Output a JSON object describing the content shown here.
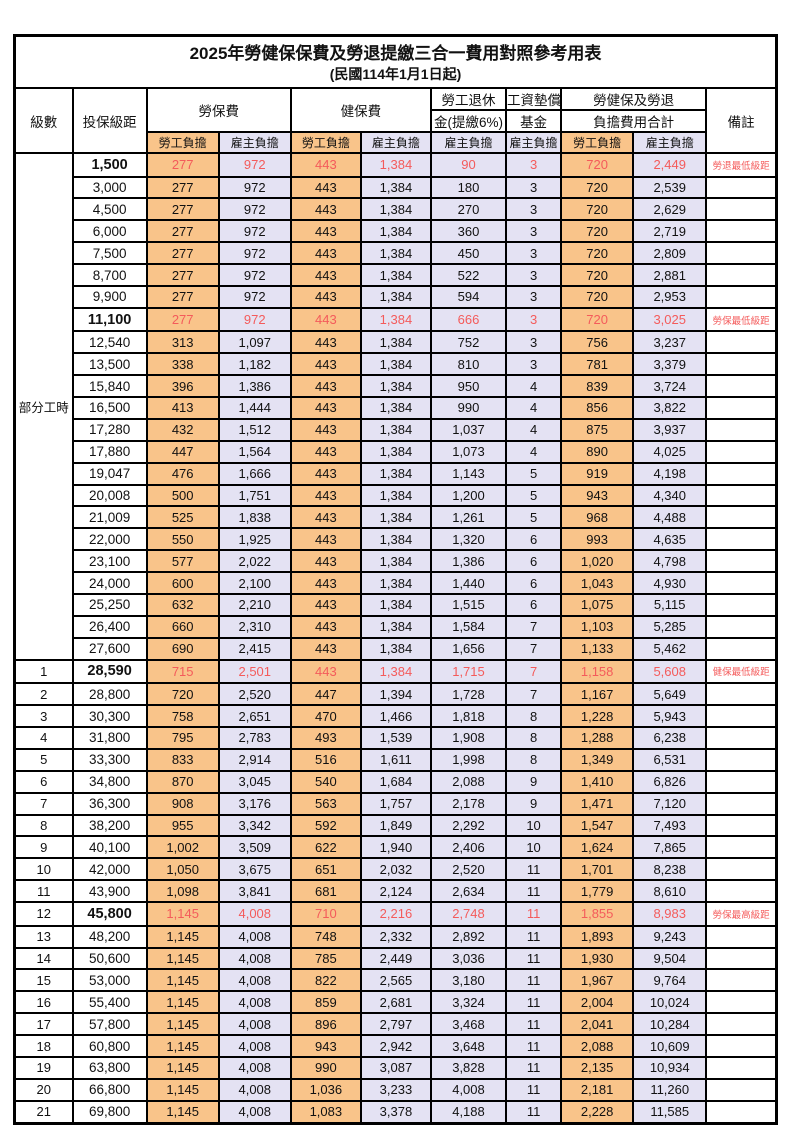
{
  "title": "2025年勞健保保費及勞退提繳三合一費用對照參考用表",
  "subtitle": "(民國114年1月1日起)",
  "columns": {
    "level": "級數",
    "bracket": "投保級距",
    "labor_insurance": "勞保費",
    "health_insurance": "健保費",
    "pension_line1": "勞工退休",
    "pension_line2": "金(提繳6%)",
    "wage_fund_line1": "工資墊償",
    "wage_fund_line2": "基金",
    "total_line1": "勞健保及勞退",
    "total_line2": "負擔費用合計",
    "employee_share": "勞工負擔",
    "employer_share": "雇主負擔",
    "remark": "備註"
  },
  "part_time_label": "部分工時",
  "colors": {
    "employee_bg": "#F9C48A",
    "employer_bg": "#E4E2F3",
    "highlight_red": "#F45B5B"
  },
  "rows": [
    {
      "level": "",
      "bracket": "1,500",
      "v": [
        "277",
        "972",
        "443",
        "1,384",
        "90",
        "3",
        "720",
        "2,449"
      ],
      "remark": "勞退最低級距",
      "hl": true
    },
    {
      "level": "",
      "bracket": "3,000",
      "v": [
        "277",
        "972",
        "443",
        "1,384",
        "180",
        "3",
        "720",
        "2,539"
      ],
      "remark": "",
      "hl": false
    },
    {
      "level": "",
      "bracket": "4,500",
      "v": [
        "277",
        "972",
        "443",
        "1,384",
        "270",
        "3",
        "720",
        "2,629"
      ],
      "remark": "",
      "hl": false
    },
    {
      "level": "",
      "bracket": "6,000",
      "v": [
        "277",
        "972",
        "443",
        "1,384",
        "360",
        "3",
        "720",
        "2,719"
      ],
      "remark": "",
      "hl": false
    },
    {
      "level": "",
      "bracket": "7,500",
      "v": [
        "277",
        "972",
        "443",
        "1,384",
        "450",
        "3",
        "720",
        "2,809"
      ],
      "remark": "",
      "hl": false
    },
    {
      "level": "",
      "bracket": "8,700",
      "v": [
        "277",
        "972",
        "443",
        "1,384",
        "522",
        "3",
        "720",
        "2,881"
      ],
      "remark": "",
      "hl": false
    },
    {
      "level": "",
      "bracket": "9,900",
      "v": [
        "277",
        "972",
        "443",
        "1,384",
        "594",
        "3",
        "720",
        "2,953"
      ],
      "remark": "",
      "hl": false
    },
    {
      "level": "",
      "bracket": "11,100",
      "v": [
        "277",
        "972",
        "443",
        "1,384",
        "666",
        "3",
        "720",
        "3,025"
      ],
      "remark": "勞保最低級距",
      "hl": true
    },
    {
      "level": "",
      "bracket": "12,540",
      "v": [
        "313",
        "1,097",
        "443",
        "1,384",
        "752",
        "3",
        "756",
        "3,237"
      ],
      "remark": "",
      "hl": false
    },
    {
      "level": "",
      "bracket": "13,500",
      "v": [
        "338",
        "1,182",
        "443",
        "1,384",
        "810",
        "3",
        "781",
        "3,379"
      ],
      "remark": "",
      "hl": false
    },
    {
      "level": "",
      "bracket": "15,840",
      "v": [
        "396",
        "1,386",
        "443",
        "1,384",
        "950",
        "4",
        "839",
        "3,724"
      ],
      "remark": "",
      "hl": false
    },
    {
      "level": "",
      "bracket": "16,500",
      "v": [
        "413",
        "1,444",
        "443",
        "1,384",
        "990",
        "4",
        "856",
        "3,822"
      ],
      "remark": "",
      "hl": false
    },
    {
      "level": "",
      "bracket": "17,280",
      "v": [
        "432",
        "1,512",
        "443",
        "1,384",
        "1,037",
        "4",
        "875",
        "3,937"
      ],
      "remark": "",
      "hl": false
    },
    {
      "level": "",
      "bracket": "17,880",
      "v": [
        "447",
        "1,564",
        "443",
        "1,384",
        "1,073",
        "4",
        "890",
        "4,025"
      ],
      "remark": "",
      "hl": false
    },
    {
      "level": "",
      "bracket": "19,047",
      "v": [
        "476",
        "1,666",
        "443",
        "1,384",
        "1,143",
        "5",
        "919",
        "4,198"
      ],
      "remark": "",
      "hl": false
    },
    {
      "level": "",
      "bracket": "20,008",
      "v": [
        "500",
        "1,751",
        "443",
        "1,384",
        "1,200",
        "5",
        "943",
        "4,340"
      ],
      "remark": "",
      "hl": false
    },
    {
      "level": "",
      "bracket": "21,009",
      "v": [
        "525",
        "1,838",
        "443",
        "1,384",
        "1,261",
        "5",
        "968",
        "4,488"
      ],
      "remark": "",
      "hl": false
    },
    {
      "level": "",
      "bracket": "22,000",
      "v": [
        "550",
        "1,925",
        "443",
        "1,384",
        "1,320",
        "6",
        "993",
        "4,635"
      ],
      "remark": "",
      "hl": false
    },
    {
      "level": "",
      "bracket": "23,100",
      "v": [
        "577",
        "2,022",
        "443",
        "1,384",
        "1,386",
        "6",
        "1,020",
        "4,798"
      ],
      "remark": "",
      "hl": false
    },
    {
      "level": "",
      "bracket": "24,000",
      "v": [
        "600",
        "2,100",
        "443",
        "1,384",
        "1,440",
        "6",
        "1,043",
        "4,930"
      ],
      "remark": "",
      "hl": false
    },
    {
      "level": "",
      "bracket": "25,250",
      "v": [
        "632",
        "2,210",
        "443",
        "1,384",
        "1,515",
        "6",
        "1,075",
        "5,115"
      ],
      "remark": "",
      "hl": false
    },
    {
      "level": "",
      "bracket": "26,400",
      "v": [
        "660",
        "2,310",
        "443",
        "1,384",
        "1,584",
        "7",
        "1,103",
        "5,285"
      ],
      "remark": "",
      "hl": false
    },
    {
      "level": "",
      "bracket": "27,600",
      "v": [
        "690",
        "2,415",
        "443",
        "1,384",
        "1,656",
        "7",
        "1,133",
        "5,462"
      ],
      "remark": "",
      "hl": false
    },
    {
      "level": "1",
      "bracket": "28,590",
      "v": [
        "715",
        "2,501",
        "443",
        "1,384",
        "1,715",
        "7",
        "1,158",
        "5,608"
      ],
      "remark": "健保最低級距",
      "hl": true
    },
    {
      "level": "2",
      "bracket": "28,800",
      "v": [
        "720",
        "2,520",
        "447",
        "1,394",
        "1,728",
        "7",
        "1,167",
        "5,649"
      ],
      "remark": "",
      "hl": false
    },
    {
      "level": "3",
      "bracket": "30,300",
      "v": [
        "758",
        "2,651",
        "470",
        "1,466",
        "1,818",
        "8",
        "1,228",
        "5,943"
      ],
      "remark": "",
      "hl": false
    },
    {
      "level": "4",
      "bracket": "31,800",
      "v": [
        "795",
        "2,783",
        "493",
        "1,539",
        "1,908",
        "8",
        "1,288",
        "6,238"
      ],
      "remark": "",
      "hl": false
    },
    {
      "level": "5",
      "bracket": "33,300",
      "v": [
        "833",
        "2,914",
        "516",
        "1,611",
        "1,998",
        "8",
        "1,349",
        "6,531"
      ],
      "remark": "",
      "hl": false
    },
    {
      "level": "6",
      "bracket": "34,800",
      "v": [
        "870",
        "3,045",
        "540",
        "1,684",
        "2,088",
        "9",
        "1,410",
        "6,826"
      ],
      "remark": "",
      "hl": false
    },
    {
      "level": "7",
      "bracket": "36,300",
      "v": [
        "908",
        "3,176",
        "563",
        "1,757",
        "2,178",
        "9",
        "1,471",
        "7,120"
      ],
      "remark": "",
      "hl": false
    },
    {
      "level": "8",
      "bracket": "38,200",
      "v": [
        "955",
        "3,342",
        "592",
        "1,849",
        "2,292",
        "10",
        "1,547",
        "7,493"
      ],
      "remark": "",
      "hl": false
    },
    {
      "level": "9",
      "bracket": "40,100",
      "v": [
        "1,002",
        "3,509",
        "622",
        "1,940",
        "2,406",
        "10",
        "1,624",
        "7,865"
      ],
      "remark": "",
      "hl": false
    },
    {
      "level": "10",
      "bracket": "42,000",
      "v": [
        "1,050",
        "3,675",
        "651",
        "2,032",
        "2,520",
        "11",
        "1,701",
        "8,238"
      ],
      "remark": "",
      "hl": false
    },
    {
      "level": "11",
      "bracket": "43,900",
      "v": [
        "1,098",
        "3,841",
        "681",
        "2,124",
        "2,634",
        "11",
        "1,779",
        "8,610"
      ],
      "remark": "",
      "hl": false
    },
    {
      "level": "12",
      "bracket": "45,800",
      "v": [
        "1,145",
        "4,008",
        "710",
        "2,216",
        "2,748",
        "11",
        "1,855",
        "8,983"
      ],
      "remark": "勞保最高級距",
      "hl": true
    },
    {
      "level": "13",
      "bracket": "48,200",
      "v": [
        "1,145",
        "4,008",
        "748",
        "2,332",
        "2,892",
        "11",
        "1,893",
        "9,243"
      ],
      "remark": "",
      "hl": false
    },
    {
      "level": "14",
      "bracket": "50,600",
      "v": [
        "1,145",
        "4,008",
        "785",
        "2,449",
        "3,036",
        "11",
        "1,930",
        "9,504"
      ],
      "remark": "",
      "hl": false
    },
    {
      "level": "15",
      "bracket": "53,000",
      "v": [
        "1,145",
        "4,008",
        "822",
        "2,565",
        "3,180",
        "11",
        "1,967",
        "9,764"
      ],
      "remark": "",
      "hl": false
    },
    {
      "level": "16",
      "bracket": "55,400",
      "v": [
        "1,145",
        "4,008",
        "859",
        "2,681",
        "3,324",
        "11",
        "2,004",
        "10,024"
      ],
      "remark": "",
      "hl": false
    },
    {
      "level": "17",
      "bracket": "57,800",
      "v": [
        "1,145",
        "4,008",
        "896",
        "2,797",
        "3,468",
        "11",
        "2,041",
        "10,284"
      ],
      "remark": "",
      "hl": false
    },
    {
      "level": "18",
      "bracket": "60,800",
      "v": [
        "1,145",
        "4,008",
        "943",
        "2,942",
        "3,648",
        "11",
        "2,088",
        "10,609"
      ],
      "remark": "",
      "hl": false
    },
    {
      "level": "19",
      "bracket": "63,800",
      "v": [
        "1,145",
        "4,008",
        "990",
        "3,087",
        "3,828",
        "11",
        "2,135",
        "10,934"
      ],
      "remark": "",
      "hl": false
    },
    {
      "level": "20",
      "bracket": "66,800",
      "v": [
        "1,145",
        "4,008",
        "1,036",
        "3,233",
        "4,008",
        "11",
        "2,181",
        "11,260"
      ],
      "remark": "",
      "hl": false
    },
    {
      "level": "21",
      "bracket": "69,800",
      "v": [
        "1,145",
        "4,008",
        "1,083",
        "3,378",
        "4,188",
        "11",
        "2,228",
        "11,585"
      ],
      "remark": "",
      "hl": false
    }
  ]
}
